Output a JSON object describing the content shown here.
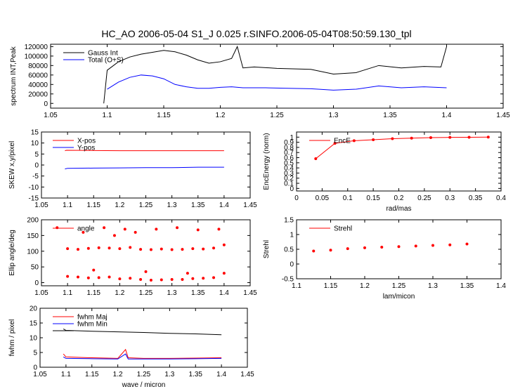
{
  "title": "HC_AO 2006-05-04 S1_J 0.025 r.SINFO.2006-05-04T08:50:59.130_tpl",
  "colors": {
    "red": "#ff0000",
    "blue": "#0000ff",
    "black": "#000000"
  },
  "chart_data": [
    {
      "id": "spectrum",
      "type": "line",
      "xlim": [
        1.05,
        1.45
      ],
      "ylim": [
        -10000,
        125000
      ],
      "xticks": [
        "1.05",
        "1.1",
        "1.15",
        "1.2",
        "1.25",
        "1.3",
        "1.35",
        "1.4",
        "1.45"
      ],
      "yticks": [
        "0",
        "20000",
        "40000",
        "60000",
        "80000",
        "100000",
        "120000"
      ],
      "xlabel": "",
      "ylabel": "spectrum INT,Peak",
      "legend": [
        "Gauss Int",
        "Total (O+S)"
      ],
      "series": [
        {
          "name": "Gauss Int",
          "color": "#000000",
          "x": [
            1.097,
            1.1,
            1.11,
            1.12,
            1.13,
            1.14,
            1.15,
            1.16,
            1.17,
            1.18,
            1.19,
            1.2,
            1.21,
            1.215,
            1.22,
            1.23,
            1.25,
            1.28,
            1.3,
            1.32,
            1.34,
            1.36,
            1.38,
            1.395,
            1.4
          ],
          "y": [
            0,
            70000,
            88000,
            98000,
            104000,
            108000,
            112000,
            109000,
            102000,
            92000,
            85000,
            88000,
            95000,
            120000,
            75000,
            77000,
            74000,
            72000,
            62000,
            65000,
            80000,
            75000,
            78000,
            77000,
            120000
          ]
        },
        {
          "name": "Total (O+S)",
          "color": "#0000ff",
          "x": [
            1.1,
            1.11,
            1.12,
            1.13,
            1.14,
            1.15,
            1.16,
            1.17,
            1.18,
            1.19,
            1.2,
            1.21,
            1.22,
            1.24,
            1.26,
            1.28,
            1.3,
            1.32,
            1.34,
            1.36,
            1.38,
            1.4
          ],
          "y": [
            30000,
            45000,
            55000,
            60000,
            58000,
            52000,
            40000,
            35000,
            32000,
            32000,
            34000,
            35000,
            33000,
            33000,
            32000,
            31000,
            28000,
            30000,
            37000,
            33000,
            35000,
            33000
          ]
        }
      ]
    },
    {
      "id": "skew",
      "type": "line",
      "xlim": [
        1.05,
        1.45
      ],
      "ylim": [
        -15,
        15
      ],
      "xticks": [
        "1.05",
        "1.1",
        "1.15",
        "1.2",
        "1.25",
        "1.3",
        "1.35",
        "1.4",
        "1.45"
      ],
      "yticks": [
        "-15",
        "-10",
        "-5",
        "0",
        "5",
        "10",
        "15"
      ],
      "xlabel": "",
      "ylabel": "SKEW x,y/pixel",
      "legend": [
        "X-pos",
        "Y-pos"
      ],
      "series": [
        {
          "name": "X-pos",
          "color": "#ff0000",
          "x": [
            1.095,
            1.098,
            1.15,
            1.2,
            1.25,
            1.3,
            1.35,
            1.4
          ],
          "y": [
            6.5,
            6.7,
            6.6,
            6.5,
            6.5,
            6.5,
            6.5,
            6.5
          ]
        },
        {
          "name": "Y-pos",
          "color": "#0000ff",
          "x": [
            1.095,
            1.1,
            1.15,
            1.2,
            1.25,
            1.3,
            1.35,
            1.4
          ],
          "y": [
            -1.8,
            -1.5,
            -1.4,
            -1.3,
            -1.2,
            -1.2,
            -1.0,
            -1.0
          ]
        }
      ]
    },
    {
      "id": "encircled",
      "type": "line",
      "xlim": [
        0,
        0.4
      ],
      "ylim": [
        -0.05,
        1.1
      ],
      "xticks": [
        "0",
        "0.05",
        "0.1",
        "0.15",
        "0.2",
        "0.25",
        "0.3",
        "0.35",
        "0.4"
      ],
      "yticks": [
        "0",
        "0.1",
        "0.2",
        "0.3",
        "0.4",
        "0.5",
        "0.6",
        "0.7",
        "0.8",
        "0.9",
        "1"
      ],
      "xlabel": "rad/mas",
      "ylabel": "EncEnergy (norm)",
      "legend": [
        "EncE"
      ],
      "series": [
        {
          "name": "EncE",
          "color": "#ff0000",
          "x": [
            0.0375,
            0.075,
            0.1125,
            0.15,
            0.1875,
            0.225,
            0.2625,
            0.3,
            0.3375,
            0.375
          ],
          "y": [
            0.58,
            0.88,
            0.93,
            0.95,
            0.97,
            0.98,
            0.99,
            0.995,
            0.998,
            1.0
          ]
        }
      ]
    },
    {
      "id": "ellipse",
      "type": "scatter",
      "xlim": [
        1.05,
        1.45
      ],
      "ylim": [
        -10,
        200
      ],
      "xticks": [
        "1.05",
        "1.1",
        "1.15",
        "1.2",
        "1.25",
        "1.3",
        "1.35",
        "1.4",
        "1.45"
      ],
      "yticks": [
        "0",
        "50",
        "100",
        "150",
        "200"
      ],
      "xlabel": "",
      "ylabel": "Ellip angle/deg",
      "legend": [
        "angle"
      ],
      "series": [
        {
          "name": "angle",
          "color": "#ff0000",
          "x": [
            1.1,
            1.12,
            1.14,
            1.16,
            1.18,
            1.2,
            1.22,
            1.24,
            1.26,
            1.28,
            1.3,
            1.32,
            1.34,
            1.36,
            1.38,
            1.4,
            1.1,
            1.12,
            1.14,
            1.16,
            1.18,
            1.2,
            1.22,
            1.24,
            1.26,
            1.28,
            1.3,
            1.32,
            1.34,
            1.36,
            1.38,
            1.4,
            1.08,
            1.13,
            1.17,
            1.19,
            1.21,
            1.23,
            1.27,
            1.31,
            1.35,
            1.39,
            1.15,
            1.25,
            1.33
          ],
          "y": [
            108,
            106,
            109,
            111,
            110,
            108,
            112,
            106,
            105,
            107,
            105,
            106,
            108,
            107,
            110,
            120,
            20,
            18,
            15,
            16,
            18,
            12,
            14,
            10,
            8,
            9,
            10,
            10,
            13,
            14,
            16,
            30,
            175,
            160,
            175,
            150,
            170,
            160,
            170,
            175,
            168,
            170,
            40,
            35,
            30
          ]
        }
      ]
    },
    {
      "id": "strehl",
      "type": "scatter",
      "xlim": [
        1.1,
        1.4
      ],
      "ylim": [
        -0.5,
        1.5
      ],
      "xticks": [
        "1.1",
        "1.15",
        "1.2",
        "1.25",
        "1.3",
        "1.35",
        "1.4"
      ],
      "yticks": [
        "-0.5",
        "0",
        "0.5",
        "1",
        "1.5"
      ],
      "xlabel": "lam/micon",
      "ylabel": "Strehl",
      "legend": [
        "Strehl"
      ],
      "series": [
        {
          "name": "Strehl",
          "color": "#ff0000",
          "x": [
            1.125,
            1.15,
            1.175,
            1.2,
            1.225,
            1.25,
            1.275,
            1.3,
            1.325,
            1.35
          ],
          "y": [
            0.44,
            0.47,
            0.52,
            0.55,
            0.57,
            0.59,
            0.61,
            0.63,
            0.65,
            0.68
          ]
        }
      ]
    },
    {
      "id": "fwhm",
      "type": "line",
      "xlim": [
        1.05,
        1.45
      ],
      "ylim": [
        0,
        20
      ],
      "xticks": [
        "1.05",
        "1.1",
        "1.15",
        "1.2",
        "1.25",
        "1.3",
        "1.35",
        "1.4",
        "1.45"
      ],
      "yticks": [
        "0",
        "5",
        "10",
        "15",
        "20"
      ],
      "xlabel": "wave / micron",
      "ylabel": "fwhm / pixel",
      "legend": [
        "fwhm Maj",
        "fwhm Min",
        ""
      ],
      "series": [
        {
          "name": "fwhm Maj",
          "color": "#ff0000",
          "x": [
            1.095,
            1.1,
            1.15,
            1.2,
            1.215,
            1.22,
            1.25,
            1.3,
            1.35,
            1.4
          ],
          "y": [
            4.5,
            3.5,
            3.2,
            3.0,
            6.0,
            3.2,
            3.0,
            3.0,
            3.1,
            3.2
          ]
        },
        {
          "name": "fwhm Min",
          "color": "#0000ff",
          "x": [
            1.095,
            1.1,
            1.15,
            1.2,
            1.215,
            1.22,
            1.25,
            1.3,
            1.35,
            1.4
          ],
          "y": [
            3.5,
            3.0,
            2.9,
            2.8,
            4.5,
            2.8,
            2.8,
            2.8,
            2.9,
            3.0
          ]
        },
        {
          "name": "",
          "color": "#000000",
          "x": [
            1.095,
            1.1,
            1.15,
            1.2,
            1.25,
            1.3,
            1.35,
            1.4
          ],
          "y": [
            13,
            12.5,
            12.2,
            12.0,
            11.8,
            11.5,
            11.3,
            11.0
          ]
        }
      ]
    }
  ]
}
